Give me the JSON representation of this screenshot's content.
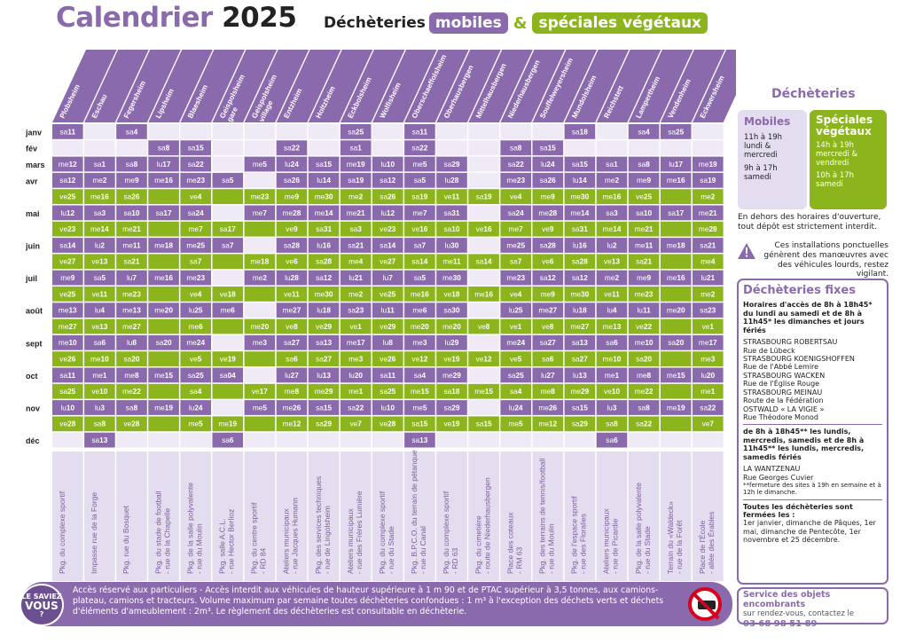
{
  "header": {
    "title_part1": "Calendrier",
    "title_year": "2025",
    "subtitle_prefix": "Déchèteries",
    "subtitle_mobiles": "mobiles",
    "subtitle_amp": "&",
    "subtitle_vegetaux": "spéciales végétaux"
  },
  "colors": {
    "purple": "#8a6aad",
    "green": "#8cb41c",
    "light_purple": "#e4dcef",
    "light_row": "#efeaf5"
  },
  "communes": [
    "Plobsheim",
    "Eschau",
    "Fegersheim",
    "Lipsheim",
    "Blaesheim",
    "Geispolsheim gare",
    "Geispolsheim village",
    "Entzheim",
    "Holtzheim",
    "Eckbolsheim",
    "Wolfisheim",
    "Oberschaeffolsheim",
    "Oberhausbergen",
    "Mittelhausbergen",
    "Niederhausbergen",
    "Souffelweyersheim",
    "Mundolsheim",
    "Reichstett",
    "Lampertheim",
    "Vendenheim",
    "Eckwersheim"
  ],
  "addresses": [
    "Pkg. du complexe sportif",
    "Impasse rue de la Forge",
    "Pkg. rue du Bosquet",
    "Pkg. du stade de football - rue de la Chapelle",
    "Pkg. de la salle polyvalente - rue du Moulin",
    "Pkg. salle A.C.L. - rue Hector Berlioz",
    "Pkg. du centre sportif - RD 84",
    "Ateliers municipaux - rue Jacques Humann",
    "Pkg. des services techniques - rue de Lingolsheim",
    "Ateliers municipaux - rue des Frères Lumière",
    "Pkg. du complexe sportif - rue du Stade",
    "Pkg. B.P.C.O. du terrain de pétanque - rue du Canal",
    "Pkg. du complexe sportif - RD 63",
    "Pkg. du cimetière - route de Niederhausbergen",
    "Place des coteaux - RM 63",
    "Pkg. des terrains de tennis/football - rue du Moulin",
    "Pkg. de l'espace sportif - rue des Floralies",
    "Ateliers municipaux - rue de Picardie",
    "Pkg. de la salle polyvalente - rue du Stade",
    "Terrain du «Waldeck» - rue de la Forêt",
    "Place de l'École - allée des Érables"
  ],
  "rows": [
    {
      "month": "janv",
      "type": "p",
      "cells": [
        "sa11",
        "",
        "sa4",
        "",
        "",
        "",
        "",
        "",
        "",
        "sa25",
        "",
        "sa11",
        "",
        "",
        "",
        "",
        "sa18",
        "",
        "sa4",
        "sa25",
        ""
      ]
    },
    {
      "month": "fév",
      "type": "p",
      "cells": [
        "",
        "",
        "",
        "sa8",
        "sa15",
        "",
        "",
        "sa22",
        "",
        "sa1",
        "",
        "sa22",
        "",
        "",
        "sa8",
        "sa15",
        "",
        "",
        "",
        "",
        ""
      ]
    },
    {
      "month": "mars",
      "type": "p",
      "cells": [
        "me12",
        "sa1",
        "sa8",
        "lu17",
        "sa22",
        "",
        "me5",
        "lu24",
        "sa15",
        "me19",
        "lu10",
        "me5",
        "sa29",
        "",
        "sa22",
        "lu24",
        "sa15",
        "sa1",
        "sa8",
        "lu17",
        "me19"
      ]
    },
    {
      "month": "avr",
      "type": "p",
      "cells": [
        "sa12",
        "me2",
        "me9",
        "me16",
        "me23",
        "sa5",
        "",
        "sa26",
        "lu14",
        "sa19",
        "sa12",
        "sa5",
        "lu28",
        "",
        "me23",
        "sa26",
        "lu14",
        "me2",
        "me9",
        "me16",
        "sa19"
      ]
    },
    {
      "month": "",
      "type": "g",
      "cells": [
        "ve25",
        "me16",
        "sa26",
        "",
        "ve4",
        "",
        "me23",
        "me9",
        "me30",
        "me2",
        "sa26",
        "sa19",
        "ve11",
        "sa19",
        "ve4",
        "me9",
        "me30",
        "me16",
        "ve25",
        "",
        "me2"
      ]
    },
    {
      "month": "mai",
      "type": "p",
      "cells": [
        "lu12",
        "sa3",
        "sa10",
        "sa17",
        "sa24",
        "",
        "me7",
        "me28",
        "me14",
        "me21",
        "lu12",
        "me7",
        "sa31",
        "",
        "sa24",
        "me28",
        "me14",
        "sa3",
        "sa10",
        "sa17",
        "me21"
      ]
    },
    {
      "month": "",
      "type": "g",
      "cells": [
        "ve23",
        "me14",
        "me21",
        "",
        "me7",
        "sa17",
        "",
        "ve9",
        "sa31",
        "sa3",
        "ve23",
        "ve16",
        "sa10",
        "ve16",
        "me7",
        "ve9",
        "sa31",
        "me14",
        "me21",
        "",
        "me28"
      ]
    },
    {
      "month": "juin",
      "type": "p",
      "cells": [
        "sa14",
        "lu2",
        "me11",
        "me18",
        "me25",
        "sa7",
        "",
        "sa28",
        "lu16",
        "sa21",
        "sa14",
        "sa7",
        "lu30",
        "",
        "me25",
        "sa28",
        "lu16",
        "lu2",
        "me11",
        "me18",
        "sa21"
      ]
    },
    {
      "month": "",
      "type": "g",
      "cells": [
        "ve27",
        "ve13",
        "sa21",
        "",
        "sa7",
        "",
        "me18",
        "ve6",
        "sa28",
        "me4",
        "ve27",
        "sa14",
        "me11",
        "sa14",
        "sa7",
        "ve6",
        "sa28",
        "ve13",
        "sa21",
        "",
        "me4"
      ]
    },
    {
      "month": "juil",
      "type": "p",
      "cells": [
        "me9",
        "sa5",
        "lu7",
        "me16",
        "me23",
        "",
        "me2",
        "lu28",
        "sa12",
        "lu21",
        "lu7",
        "sa5",
        "me30",
        "",
        "me23",
        "sa12",
        "sa12",
        "me2",
        "me9",
        "me16",
        "lu21"
      ]
    },
    {
      "month": "",
      "type": "g",
      "cells": [
        "ve25",
        "ve11",
        "me23",
        "",
        "ve4",
        "ve18",
        "",
        "ve11",
        "me30",
        "me2",
        "ve25",
        "me16",
        "ve18",
        "me16",
        "ve4",
        "me9",
        "me30",
        "ve11",
        "me23",
        "",
        "me2"
      ]
    },
    {
      "month": "août",
      "type": "p",
      "cells": [
        "me13",
        "lu4",
        "me13",
        "me20",
        "lu25",
        "me6",
        "",
        "me27",
        "lu18",
        "sa23",
        "lu11",
        "me6",
        "sa30",
        "",
        "lu25",
        "me27",
        "lu18",
        "lu4",
        "lu11",
        "me20",
        "sa23"
      ]
    },
    {
      "month": "",
      "type": "g",
      "cells": [
        "me27",
        "ve13",
        "me27",
        "",
        "me6",
        "",
        "me20",
        "ve8",
        "ve29",
        "ve1",
        "ve29",
        "me20",
        "me20",
        "ve8",
        "ve1",
        "ve8",
        "me27",
        "me13",
        "ve22",
        "",
        "ve1"
      ]
    },
    {
      "month": "sept",
      "type": "p",
      "cells": [
        "me10",
        "sa6",
        "lu8",
        "sa20",
        "me24",
        "",
        "me3",
        "sa27",
        "sa13",
        "me17",
        "lu8",
        "me3",
        "lu29",
        "",
        "me24",
        "sa27",
        "sa13",
        "sa6",
        "me10",
        "sa20",
        "me17"
      ]
    },
    {
      "month": "",
      "type": "g",
      "cells": [
        "ve26",
        "me10",
        "sa20",
        "",
        "ve5",
        "ve19",
        "",
        "sa6",
        "sa27",
        "me3",
        "ve26",
        "ve12",
        "ve19",
        "ve12",
        "ve5",
        "sa6",
        "sa27",
        "me10",
        "sa20",
        "",
        "me3"
      ]
    },
    {
      "month": "oct",
      "type": "p",
      "cells": [
        "sa11",
        "me1",
        "me8",
        "me15",
        "sa25",
        "sa04",
        "",
        "lu27",
        "lu13",
        "lu20",
        "sa11",
        "sa4",
        "me29",
        "",
        "sa25",
        "lu27",
        "lu13",
        "me1",
        "me8",
        "me15",
        "lu20"
      ]
    },
    {
      "month": "",
      "type": "g",
      "cells": [
        "sa25",
        "ve10",
        "me22",
        "",
        "sa4",
        "",
        "ve17",
        "me8",
        "me29",
        "me1",
        "sa25",
        "me15",
        "sa18",
        "me15",
        "sa4",
        "me8",
        "me29",
        "ve10",
        "me22",
        "",
        "me1"
      ]
    },
    {
      "month": "nov",
      "type": "p",
      "cells": [
        "lu10",
        "lu3",
        "sa8",
        "me19",
        "lu24",
        "",
        "me5",
        "me26",
        "sa15",
        "sa22",
        "lu10",
        "me5",
        "sa29",
        "",
        "lu24",
        "me26",
        "sa15",
        "lu3",
        "sa8",
        "me19",
        "sa22"
      ]
    },
    {
      "month": "",
      "type": "g",
      "cells": [
        "ve28",
        "sa8",
        "ve28",
        "",
        "me5",
        "me19",
        "",
        "me12",
        "sa29",
        "ve7",
        "ve28",
        "sa15",
        "ve19",
        "sa15",
        "me5",
        "me12",
        "sa29",
        "sa8",
        "sa22",
        "",
        "ve7"
      ]
    },
    {
      "month": "déc",
      "type": "p",
      "cells": [
        "",
        "sa13",
        "",
        "",
        "",
        "sa6",
        "",
        "",
        "",
        "",
        "",
        "sa13",
        "",
        "",
        "",
        "",
        "",
        "sa6",
        "",
        "",
        ""
      ]
    }
  ],
  "sidebar": {
    "title": "Déchèteries",
    "mobiles_title": "Mobiles",
    "mobiles_hours1": "11h à 19h",
    "mobiles_days1": "lundi & mercredi",
    "mobiles_hours2": "9h à 17h",
    "mobiles_days2": "samedi",
    "veg_title": "Spéciales végétaux",
    "veg_hours1": "14h à 19h",
    "veg_days1": "mercredi & vendredi",
    "veg_hours2": "10h à 17h",
    "veg_days2": "samedi",
    "note": "En dehors des horaires d'ouverture, tout dépôt est strictement interdit.",
    "warning": "Ces installations ponctuelles génèrent des manœuvres avec des véhicules lourds, restez vigilant."
  },
  "fixed": {
    "title": "Déchèteries fixes",
    "hours1": "Horaires d'accès de 8h à 18h45* du lundi au samedi et de 8h à 11h45* les dimanches et jours fériés",
    "sites1": [
      {
        "name": "STRASBOURG ROBERTSAU",
        "addr": "Rue de Lübeck"
      },
      {
        "name": "STRASBOURG KOENIGSHOFFEN",
        "addr": "Rue de l'Abbé Lemire"
      },
      {
        "name": "STRASBOURG WACKEN",
        "addr": "Rue de l'Église Rouge"
      },
      {
        "name": "STRASBOURG MEINAU",
        "addr": "Route de la Fédération"
      },
      {
        "name": "OSTWALD « LA VIGIE »",
        "addr": "Rue Théodore Monod"
      }
    ],
    "hours2": "de 8h à 18h45** les lundis, mercredis, samedis et de 8h à 11h45** les lundis, mercredis, samedis fériés",
    "site2_name": "LA WANTZENAU",
    "site2_addr": "Rue Georges Cuvier",
    "footnote": "**fermeture des sites à 19h en semaine et à 12h le dimanche.",
    "closed_title": "Toutes les déchèteries sont fermées les :",
    "closed_text": "1er janvier, dimanche de Pâques, 1er mai, dimanche de Pentecôte, 1er novembre et 25 décembre."
  },
  "encombrants": {
    "title": "Service des objets encombrants",
    "text": "sur rendez-vous, contactez le",
    "phone": "03 68 98 51 89"
  },
  "bottom": {
    "badge_line1": "LE SAVIEZ",
    "badge_line2": "VOUS",
    "badge_line3": "?",
    "text": "Accès réservé aux particuliers - Accès interdit aux véhicules de hauteur supérieure à 1 m 90 et de PTAC supérieur à 3,5 tonnes, aux camions-plateau, camions et tracteurs. Volume maximum par semaine toutes déchèteries confondues : 1 m³ à l'exception des déchets verts et déchets d'éléments d'ameublement : 2m³. Le règlement des déchèteries est consultable en déchèterie."
  }
}
